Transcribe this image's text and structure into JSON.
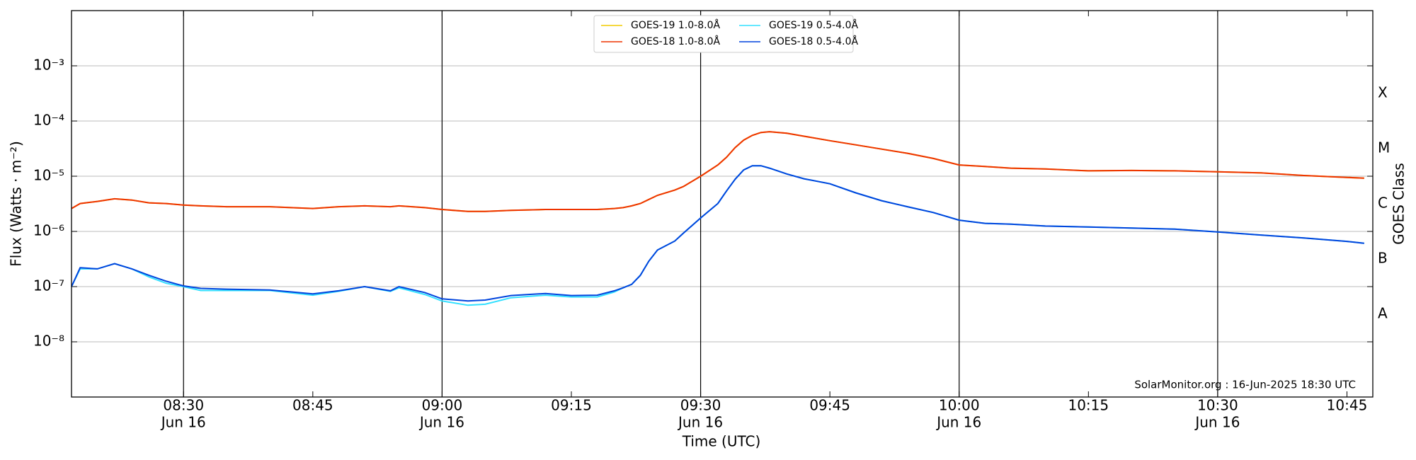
{
  "chart_data": {
    "type": "line",
    "xlabel": "Time (UTC)",
    "ylabel": "Flux (Watts · m⁻²)",
    "y2label": "GOES Class",
    "annotation": "SolarMonitor.org : 16-Jun-2025 18:30 UTC",
    "log_y": true,
    "grid": true,
    "legend": "upper center",
    "x": [
      "08:17",
      "08:18",
      "08:20",
      "08:22",
      "08:24",
      "08:26",
      "08:28",
      "08:30",
      "08:32",
      "08:35",
      "08:40",
      "08:45",
      "08:48",
      "08:51",
      "08:54",
      "08:55",
      "08:58",
      "09:00",
      "09:03",
      "09:05",
      "09:08",
      "09:12",
      "09:15",
      "09:18",
      "09:20",
      "09:21",
      "09:22",
      "09:23",
      "09:24",
      "09:25",
      "09:27",
      "09:28",
      "09:30",
      "09:32",
      "09:33",
      "09:34",
      "09:35",
      "09:36",
      "09:37",
      "09:38",
      "09:40",
      "09:42",
      "09:45",
      "09:48",
      "09:51",
      "09:54",
      "09:57",
      "10:00",
      "10:03",
      "10:06",
      "10:10",
      "10:15",
      "10:20",
      "10:25",
      "10:30",
      "10:35",
      "10:40",
      "10:45",
      "10:47"
    ],
    "xlim": [
      "08:17",
      "10:48"
    ],
    "xticks": [
      {
        "value": "08:30",
        "label": "08:30",
        "date": "Jun 16"
      },
      {
        "value": "08:45",
        "label": "08:45"
      },
      {
        "value": "09:00",
        "label": "09:00",
        "date": "Jun 16"
      },
      {
        "value": "09:15",
        "label": "09:15"
      },
      {
        "value": "09:30",
        "label": "09:30",
        "date": "Jun 16"
      },
      {
        "value": "09:45",
        "label": "09:45"
      },
      {
        "value": "10:00",
        "label": "10:00",
        "date": "Jun 16"
      },
      {
        "value": "10:15",
        "label": "10:15"
      },
      {
        "value": "10:30",
        "label": "10:30",
        "date": "Jun 16"
      },
      {
        "value": "10:45",
        "label": "10:45"
      }
    ],
    "ylim": [
      1e-09,
      0.01
    ],
    "yticks": [
      {
        "value": 1e-08,
        "label": "10⁻⁸"
      },
      {
        "value": 1e-07,
        "label": "10⁻⁷"
      },
      {
        "value": 1e-06,
        "label": "10⁻⁶"
      },
      {
        "value": 1e-05,
        "label": "10⁻⁵"
      },
      {
        "value": 0.0001,
        "label": "10⁻⁴"
      },
      {
        "value": 0.001,
        "label": "10⁻³"
      }
    ],
    "y2lim": [
      1e-09,
      0.01
    ],
    "y2ticks": [
      {
        "value": 3.162e-08,
        "label": "A"
      },
      {
        "value": 3.162e-07,
        "label": "B"
      },
      {
        "value": 3.162e-06,
        "label": "C"
      },
      {
        "value": 3.162e-05,
        "label": "M"
      },
      {
        "value": 0.0003162,
        "label": "X"
      }
    ],
    "series": [
      {
        "name": "GOES-19 1.0-8.0Å",
        "color": "#f2cc00",
        "values": [
          2.6e-06,
          3.2e-06,
          3.5e-06,
          3.9e-06,
          3.7e-06,
          3.3e-06,
          3.2e-06,
          3e-06,
          2.9e-06,
          2.8e-06,
          2.8e-06,
          2.6e-06,
          2.8e-06,
          2.9e-06,
          2.8e-06,
          2.9e-06,
          2.7e-06,
          2.5e-06,
          2.3e-06,
          2.3e-06,
          2.4e-06,
          2.5e-06,
          2.5e-06,
          2.5e-06,
          2.6e-06,
          2.7e-06,
          2.9e-06,
          3.2e-06,
          3.8e-06,
          4.5e-06,
          5.6e-06,
          6.5e-06,
          1e-05,
          1.6e-05,
          2.2e-05,
          3.3e-05,
          4.5e-05,
          5.5e-05,
          6.2e-05,
          6.4e-05,
          6e-05,
          5.3e-05,
          4.4e-05,
          3.7e-05,
          3.1e-05,
          2.6e-05,
          2.1e-05,
          1.6e-05,
          1.5e-05,
          1.4e-05,
          1.35e-05,
          1.25e-05,
          1.27e-05,
          1.25e-05,
          1.2e-05,
          1.15e-05,
          1.03e-05,
          9.5e-06,
          9.2e-06
        ]
      },
      {
        "name": "GOES-18 1.0-8.0Å",
        "color": "#ee3300",
        "values": [
          2.6e-06,
          3.2e-06,
          3.5e-06,
          3.9e-06,
          3.7e-06,
          3.3e-06,
          3.2e-06,
          3e-06,
          2.9e-06,
          2.8e-06,
          2.8e-06,
          2.6e-06,
          2.8e-06,
          2.9e-06,
          2.8e-06,
          2.9e-06,
          2.7e-06,
          2.5e-06,
          2.3e-06,
          2.3e-06,
          2.4e-06,
          2.5e-06,
          2.5e-06,
          2.5e-06,
          2.6e-06,
          2.7e-06,
          2.9e-06,
          3.2e-06,
          3.8e-06,
          4.5e-06,
          5.6e-06,
          6.5e-06,
          1e-05,
          1.6e-05,
          2.2e-05,
          3.3e-05,
          4.5e-05,
          5.5e-05,
          6.2e-05,
          6.4e-05,
          6e-05,
          5.3e-05,
          4.4e-05,
          3.7e-05,
          3.1e-05,
          2.6e-05,
          2.1e-05,
          1.6e-05,
          1.5e-05,
          1.4e-05,
          1.35e-05,
          1.25e-05,
          1.27e-05,
          1.25e-05,
          1.2e-05,
          1.15e-05,
          1.03e-05,
          9.5e-06,
          9.2e-06
        ]
      },
      {
        "name": "GOES-19 0.5-4.0Å",
        "color": "#33e0ff",
        "values": [
          1e-07,
          2.1e-07,
          2.1e-07,
          2.6e-07,
          2.1e-07,
          1.5e-07,
          1.15e-07,
          1e-07,
          8.5e-08,
          8.5e-08,
          8.5e-08,
          7e-08,
          8.2e-08,
          1e-07,
          8.2e-08,
          9.5e-08,
          7.2e-08,
          5.5e-08,
          4.6e-08,
          4.8e-08,
          6.3e-08,
          7e-08,
          6.5e-08,
          6.5e-08,
          8e-08,
          9.5e-08,
          1.1e-07,
          1.6e-07,
          2.9e-07,
          4.6e-07,
          6.7e-07,
          9.3e-07,
          1.75e-06,
          3.2e-06,
          5.4e-06,
          8.8e-06,
          1.3e-05,
          1.55e-05,
          1.55e-05,
          1.4e-05,
          1.1e-05,
          9e-06,
          7.3e-06,
          5e-06,
          3.6e-06,
          2.8e-06,
          2.2e-06,
          1.6e-06,
          1.4e-06,
          1.35e-06,
          1.25e-06,
          1.2e-06,
          1.15e-06,
          1.1e-06,
          9.8e-07,
          8.6e-07,
          7.6e-07,
          6.6e-07,
          6.1e-07
        ]
      },
      {
        "name": "GOES-18 0.5-4.0Å",
        "color": "#0044dd",
        "values": [
          1e-07,
          2.2e-07,
          2.1e-07,
          2.6e-07,
          2.1e-07,
          1.6e-07,
          1.25e-07,
          1.03e-07,
          9.3e-08,
          9e-08,
          8.7e-08,
          7.4e-08,
          8.4e-08,
          1e-07,
          8.4e-08,
          1e-07,
          7.8e-08,
          6e-08,
          5.5e-08,
          5.7e-08,
          6.9e-08,
          7.5e-08,
          6.9e-08,
          7e-08,
          8.4e-08,
          9.5e-08,
          1.1e-07,
          1.6e-07,
          2.9e-07,
          4.6e-07,
          6.7e-07,
          9.3e-07,
          1.75e-06,
          3.2e-06,
          5.4e-06,
          8.8e-06,
          1.3e-05,
          1.55e-05,
          1.55e-05,
          1.4e-05,
          1.1e-05,
          9e-06,
          7.3e-06,
          5e-06,
          3.6e-06,
          2.8e-06,
          2.2e-06,
          1.6e-06,
          1.4e-06,
          1.35e-06,
          1.25e-06,
          1.2e-06,
          1.15e-06,
          1.1e-06,
          9.8e-07,
          8.6e-07,
          7.6e-07,
          6.6e-07,
          6.1e-07
        ]
      }
    ]
  }
}
